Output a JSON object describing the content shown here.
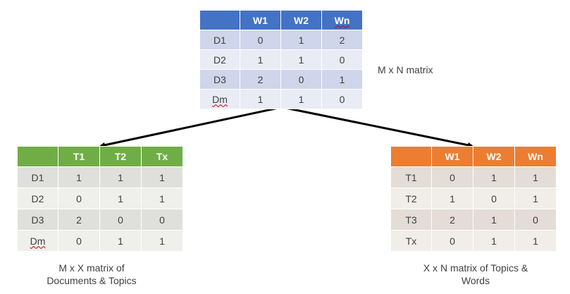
{
  "top_matrix": {
    "headers": [
      "",
      "W1",
      "W2",
      "Wn"
    ],
    "rows": [
      [
        "D1",
        "0",
        "1",
        "2"
      ],
      [
        "D2",
        "1",
        "1",
        "0"
      ],
      [
        "D3",
        "2",
        "0",
        "1"
      ],
      [
        "Dm",
        "1",
        "1",
        "0"
      ]
    ],
    "caption": "M x N matrix",
    "header_color": "#4472c4"
  },
  "left_matrix": {
    "headers": [
      "",
      "T1",
      "T2",
      "Tx"
    ],
    "rows": [
      [
        "D1",
        "1",
        "1",
        "1"
      ],
      [
        "D2",
        "0",
        "1",
        "1"
      ],
      [
        "D3",
        "2",
        "0",
        "0"
      ],
      [
        "Dm",
        "0",
        "1",
        "1"
      ]
    ],
    "caption_line1": "M x X matrix of",
    "caption_line2": "Documents & Topics",
    "header_color": "#70ad47"
  },
  "right_matrix": {
    "headers": [
      "",
      "W1",
      "W2",
      "Wn"
    ],
    "rows": [
      [
        "T1",
        "0",
        "1",
        "1"
      ],
      [
        "T2",
        "1",
        "0",
        "1"
      ],
      [
        "T3",
        "2",
        "1",
        "0"
      ],
      [
        "Tx",
        "0",
        "1",
        "1"
      ]
    ],
    "caption_line1": "X x N matrix of Topics &",
    "caption_line2": "Words",
    "header_color": "#ed7d31"
  }
}
